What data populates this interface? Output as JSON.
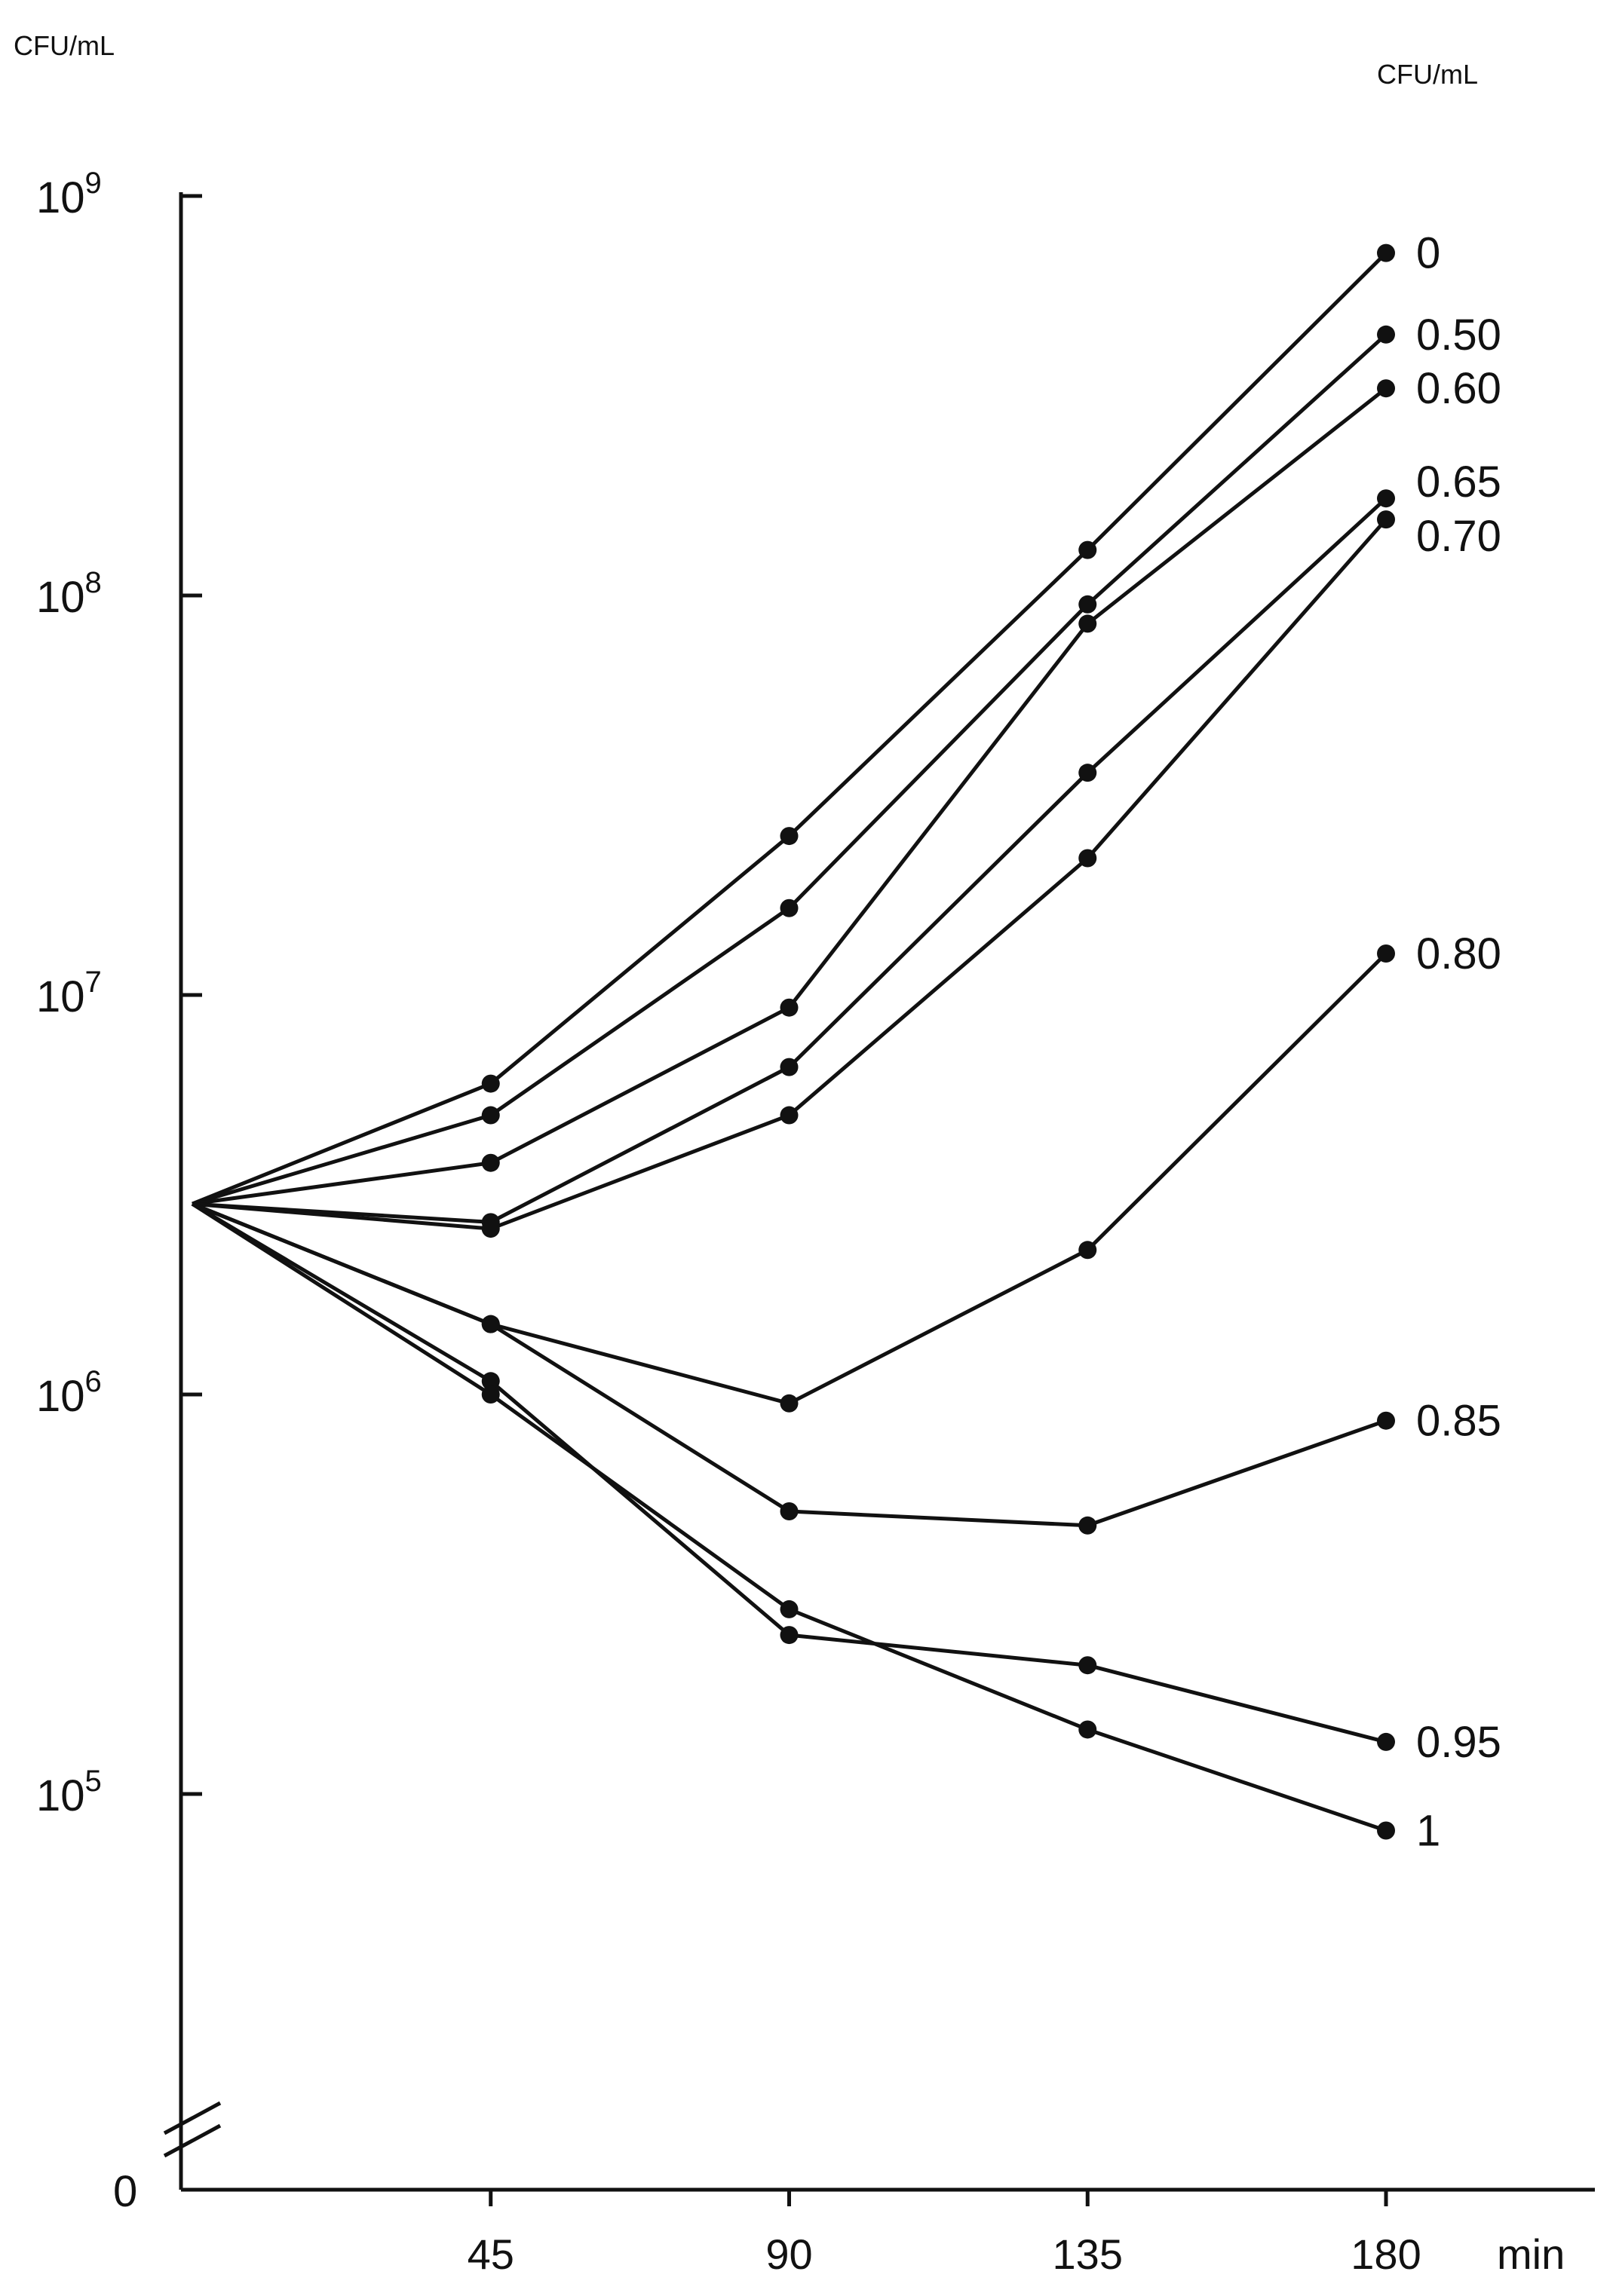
{
  "chart_data": {
    "type": "line",
    "y_unit_left": "CFU/mL",
    "y_unit_right": "CFU/mL",
    "x_unit": "min",
    "y_scale": "log",
    "y_zero_label": "0",
    "y_ticks": [
      {
        "value": 1000000000,
        "base": "10",
        "exp": "9"
      },
      {
        "value": 100000000,
        "base": "10",
        "exp": "8"
      },
      {
        "value": 10000000,
        "base": "10",
        "exp": "7"
      },
      {
        "value": 1000000,
        "base": "10",
        "exp": "6"
      },
      {
        "value": 100000,
        "base": "10",
        "exp": "5"
      }
    ],
    "x_ticks": [
      "45",
      "90",
      "135",
      "180"
    ],
    "x": [
      0,
      45,
      90,
      135,
      180
    ],
    "grid": false,
    "legend": "none",
    "series": [
      {
        "name": "0",
        "values": [
          3000000,
          6000000,
          25000000,
          130000000,
          720000000
        ]
      },
      {
        "name": "0.50",
        "values": [
          3000000,
          5000000,
          16500000,
          95000000,
          450000000
        ]
      },
      {
        "name": "0.60",
        "values": [
          3000000,
          3800000,
          9300000,
          85000000,
          330000000
        ]
      },
      {
        "name": "0.65",
        "values": [
          3000000,
          2700000,
          6600000,
          36000000,
          175000000
        ]
      },
      {
        "name": "0.70",
        "values": [
          3000000,
          2600000,
          5000000,
          22000000,
          155000000
        ]
      },
      {
        "name": "0.80",
        "values": [
          3000000,
          1500000,
          950000,
          2300000,
          12700000
        ]
      },
      {
        "name": "0.85",
        "values": [
          3000000,
          1500000,
          510000,
          470000,
          860000
        ]
      },
      {
        "name": "0.95",
        "values": [
          3000000,
          1080000,
          250000,
          210000,
          135000
        ]
      },
      {
        "name": "1",
        "values": [
          3000000,
          1000000,
          290000,
          145000,
          81000
        ]
      }
    ]
  }
}
